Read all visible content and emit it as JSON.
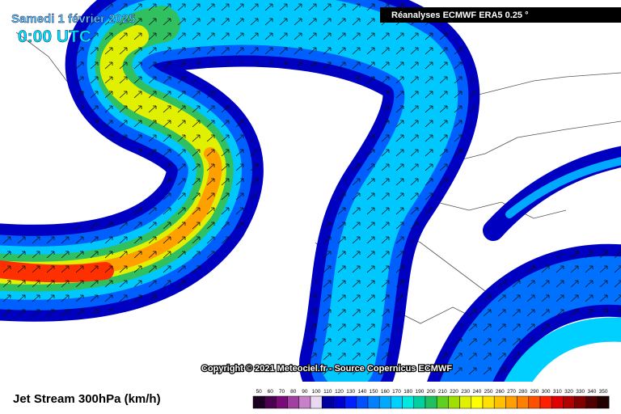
{
  "header": {
    "title": "Samedi 1 février 2025",
    "time": "0:00 UTC",
    "source_badge": "Réanalyses ECMWF ERA5 0.25 °"
  },
  "copyright": "Copyright © 2021 Meteociel.fr - Source Copernicus ECMWF",
  "footer": {
    "label": "Jet Stream 300hPa (km/h)",
    "scale": {
      "values": [
        50,
        60,
        70,
        80,
        90,
        100,
        110,
        120,
        130,
        140,
        150,
        160,
        170,
        180,
        190,
        200,
        210,
        220,
        230,
        240,
        250,
        260,
        270,
        280,
        290,
        300,
        310,
        320,
        330,
        340,
        350
      ],
      "colors": [
        "#1a0020",
        "#4b0050",
        "#7a0a7a",
        "#a040a0",
        "#c880c8",
        "#e8d8f0",
        "#0000a0",
        "#0000d0",
        "#0020ff",
        "#0050ff",
        "#0080ff",
        "#00a8ff",
        "#00d0ff",
        "#00e8e0",
        "#00d0a0",
        "#20c060",
        "#60d020",
        "#a0e000",
        "#e0f000",
        "#ffff00",
        "#ffe000",
        "#ffc000",
        "#ffa000",
        "#ff8000",
        "#ff5000",
        "#ff2000",
        "#e00000",
        "#b00000",
        "#800000",
        "#500000",
        "#200000"
      ]
    }
  }
}
